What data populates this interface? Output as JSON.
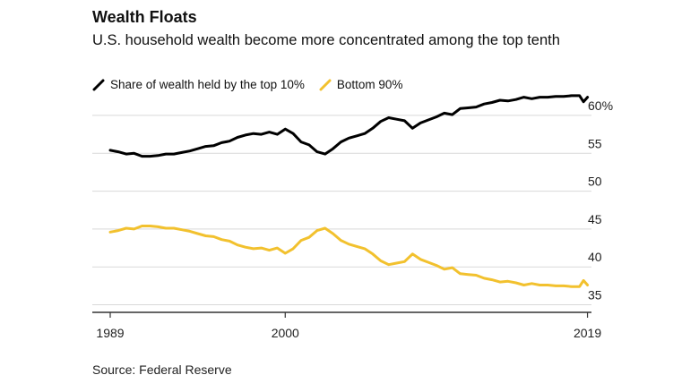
{
  "header": {
    "title": "Wealth Floats",
    "subtitle": "U.S. household wealth become more concentrated among the top tenth"
  },
  "source": "Source: Federal Reserve",
  "colors": {
    "top10": "#000000",
    "bottom90": "#f2c12e",
    "grid": "#d9d9d9",
    "axis": "#333333"
  },
  "chart_data": {
    "type": "line",
    "title": "Wealth Floats",
    "subtitle": "U.S. household wealth become more concentrated among the top tenth",
    "xlabel": "",
    "ylabel": "",
    "xlim": [
      1989,
      2019.25
    ],
    "ylim": [
      34,
      62
    ],
    "x_ticks": [
      1989,
      2000,
      2019
    ],
    "x_tick_labels": [
      "1989",
      "2000",
      "2019"
    ],
    "y_ticks": [
      35,
      40,
      45,
      50,
      55,
      60
    ],
    "y_tick_labels": [
      "35",
      "40",
      "45",
      "50",
      "55",
      "60%"
    ],
    "grid": "horizontal",
    "legend_position": "top-left",
    "series": [
      {
        "name": "Share of wealth held by the top 10%",
        "color": "#000000",
        "x": [
          1989.0,
          1989.5,
          1990.0,
          1990.5,
          1991.0,
          1991.5,
          1992.0,
          1992.5,
          1993.0,
          1993.5,
          1994.0,
          1994.5,
          1995.0,
          1995.5,
          1996.0,
          1996.5,
          1997.0,
          1997.5,
          1998.0,
          1998.5,
          1999.0,
          1999.5,
          2000.0,
          2000.5,
          2001.0,
          2001.5,
          2002.0,
          2002.5,
          2003.0,
          2003.5,
          2004.0,
          2004.5,
          2005.0,
          2005.5,
          2006.0,
          2006.5,
          2007.0,
          2007.5,
          2008.0,
          2008.5,
          2009.0,
          2009.5,
          2010.0,
          2010.5,
          2011.0,
          2011.5,
          2012.0,
          2012.5,
          2013.0,
          2013.5,
          2014.0,
          2014.5,
          2015.0,
          2015.5,
          2016.0,
          2016.5,
          2017.0,
          2017.5,
          2018.0,
          2018.5,
          2018.75,
          2019.0
        ],
        "y": [
          55.4,
          55.2,
          54.9,
          55.0,
          54.6,
          54.6,
          54.7,
          54.9,
          54.9,
          55.1,
          55.3,
          55.6,
          55.9,
          56.0,
          56.4,
          56.6,
          57.1,
          57.4,
          57.6,
          57.5,
          57.8,
          57.5,
          58.2,
          57.6,
          56.5,
          56.1,
          55.2,
          54.9,
          55.6,
          56.5,
          57.0,
          57.3,
          57.6,
          58.3,
          59.2,
          59.7,
          59.5,
          59.3,
          58.3,
          59.0,
          59.4,
          59.8,
          60.3,
          60.1,
          60.9,
          61.0,
          61.1,
          61.5,
          61.7,
          62.0,
          61.9,
          62.1,
          62.4,
          62.2,
          62.4,
          62.4,
          62.5,
          62.5,
          62.6,
          62.6,
          61.8,
          62.4
        ]
      },
      {
        "name": "Bottom 90%",
        "color": "#f2c12e",
        "x": [
          1989.0,
          1989.5,
          1990.0,
          1990.5,
          1991.0,
          1991.5,
          1992.0,
          1992.5,
          1993.0,
          1993.5,
          1994.0,
          1994.5,
          1995.0,
          1995.5,
          1996.0,
          1996.5,
          1997.0,
          1997.5,
          1998.0,
          1998.5,
          1999.0,
          1999.5,
          2000.0,
          2000.5,
          2001.0,
          2001.5,
          2002.0,
          2002.5,
          2003.0,
          2003.5,
          2004.0,
          2004.5,
          2005.0,
          2005.5,
          2006.0,
          2006.5,
          2007.0,
          2007.5,
          2008.0,
          2008.5,
          2009.0,
          2009.5,
          2010.0,
          2010.5,
          2011.0,
          2011.5,
          2012.0,
          2012.5,
          2013.0,
          2013.5,
          2014.0,
          2014.5,
          2015.0,
          2015.5,
          2016.0,
          2016.5,
          2017.0,
          2017.5,
          2018.0,
          2018.5,
          2018.75,
          2019.0
        ],
        "y": [
          44.6,
          44.8,
          45.1,
          45.0,
          45.4,
          45.4,
          45.3,
          45.1,
          45.1,
          44.9,
          44.7,
          44.4,
          44.1,
          44.0,
          43.6,
          43.4,
          42.9,
          42.6,
          42.4,
          42.5,
          42.2,
          42.5,
          41.8,
          42.4,
          43.5,
          43.9,
          44.8,
          45.1,
          44.4,
          43.5,
          43.0,
          42.7,
          42.4,
          41.7,
          40.8,
          40.3,
          40.5,
          40.7,
          41.7,
          41.0,
          40.6,
          40.2,
          39.7,
          39.9,
          39.1,
          39.0,
          38.9,
          38.5,
          38.3,
          38.0,
          38.1,
          37.9,
          37.6,
          37.8,
          37.6,
          37.6,
          37.5,
          37.5,
          37.4,
          37.4,
          38.2,
          37.6
        ]
      }
    ]
  }
}
